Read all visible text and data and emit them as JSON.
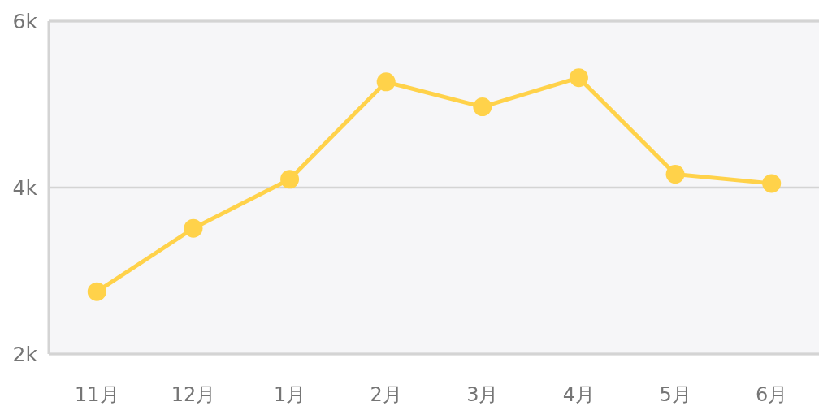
{
  "chart_data": {
    "type": "line",
    "categories": [
      "11月",
      "12月",
      "1月",
      "2月",
      "3月",
      "4月",
      "5月",
      "6月"
    ],
    "series": [
      {
        "color": "#ffd24a",
        "values": [
          2750,
          3510,
          4100,
          5270,
          4970,
          5320,
          4160,
          4050
        ]
      }
    ],
    "ylim": [
      2000,
      6000
    ],
    "yticks": [
      {
        "value": 2000,
        "label": "2k"
      },
      {
        "value": 4000,
        "label": "4k"
      },
      {
        "value": 6000,
        "label": "6k"
      }
    ],
    "grid": "y",
    "marker": "circle",
    "line_style": "solid"
  }
}
